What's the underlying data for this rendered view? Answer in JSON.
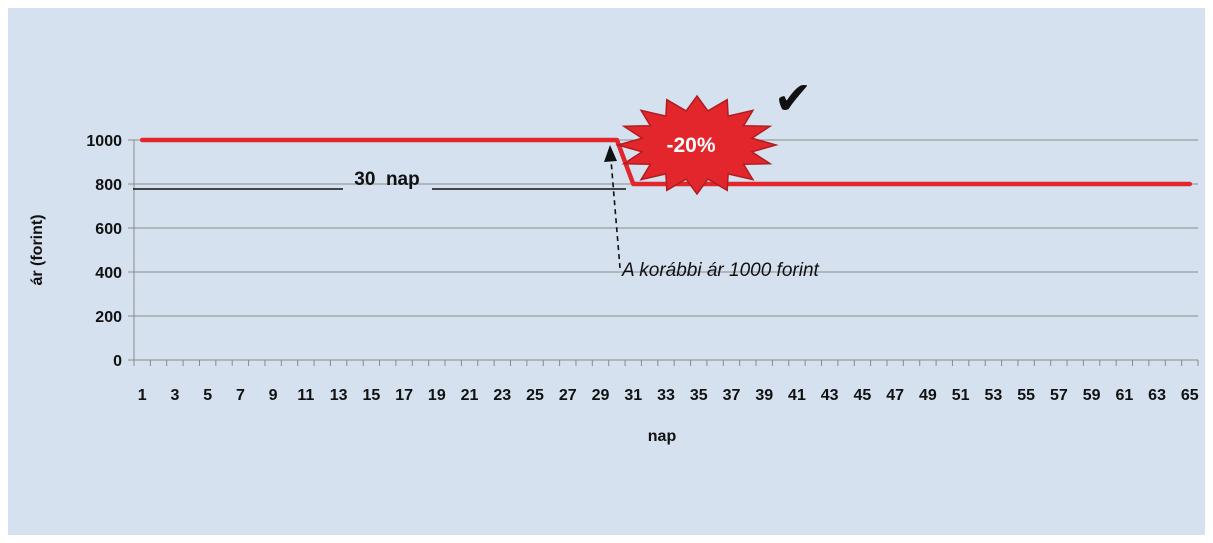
{
  "chart_data": {
    "type": "line",
    "x": [
      1,
      2,
      3,
      4,
      5,
      6,
      7,
      8,
      9,
      10,
      11,
      12,
      13,
      14,
      15,
      16,
      17,
      18,
      19,
      20,
      21,
      22,
      23,
      24,
      25,
      26,
      27,
      28,
      29,
      30,
      31,
      32,
      33,
      34,
      35,
      36,
      37,
      38,
      39,
      40,
      41,
      42,
      43,
      44,
      45,
      46,
      47,
      48,
      49,
      50,
      51,
      52,
      53,
      54,
      55,
      56,
      57,
      58,
      59,
      60,
      61,
      62,
      63,
      64,
      65
    ],
    "series": [
      {
        "values": [
          1000,
          1000,
          1000,
          1000,
          1000,
          1000,
          1000,
          1000,
          1000,
          1000,
          1000,
          1000,
          1000,
          1000,
          1000,
          1000,
          1000,
          1000,
          1000,
          1000,
          1000,
          1000,
          1000,
          1000,
          1000,
          1000,
          1000,
          1000,
          1000,
          1000,
          800,
          800,
          800,
          800,
          800,
          800,
          800,
          800,
          800,
          800,
          800,
          800,
          800,
          800,
          800,
          800,
          800,
          800,
          800,
          800,
          800,
          800,
          800,
          800,
          800,
          800,
          800,
          800,
          800,
          800,
          800,
          800,
          800,
          800,
          800
        ],
        "color": "#e3262b"
      }
    ],
    "xlabel": "nap",
    "ylabel": "ár (forint)",
    "ylim": [
      0,
      1000
    ],
    "y_ticks": [
      "0",
      "200",
      "400",
      "600",
      "800",
      "1000"
    ],
    "x_ticks": [
      "1",
      "3",
      "5",
      "7",
      "9",
      "11",
      "13",
      "15",
      "17",
      "19",
      "21",
      "23",
      "25",
      "27",
      "29",
      "31",
      "33",
      "35",
      "37",
      "39",
      "41",
      "43",
      "45",
      "47",
      "49",
      "51",
      "53",
      "55",
      "57",
      "59",
      "61",
      "63",
      "65"
    ],
    "grid": true,
    "annotations": {
      "bracket_label": "30  nap",
      "note": "A korábbi ár 1000 forint",
      "burst_label": "-20%",
      "check_mark": "✔"
    }
  },
  "colors": {
    "background": "#d5e1ef",
    "line": "#e3262b",
    "burst": "#e3262b",
    "burst_dark": "#9e1a1e"
  }
}
